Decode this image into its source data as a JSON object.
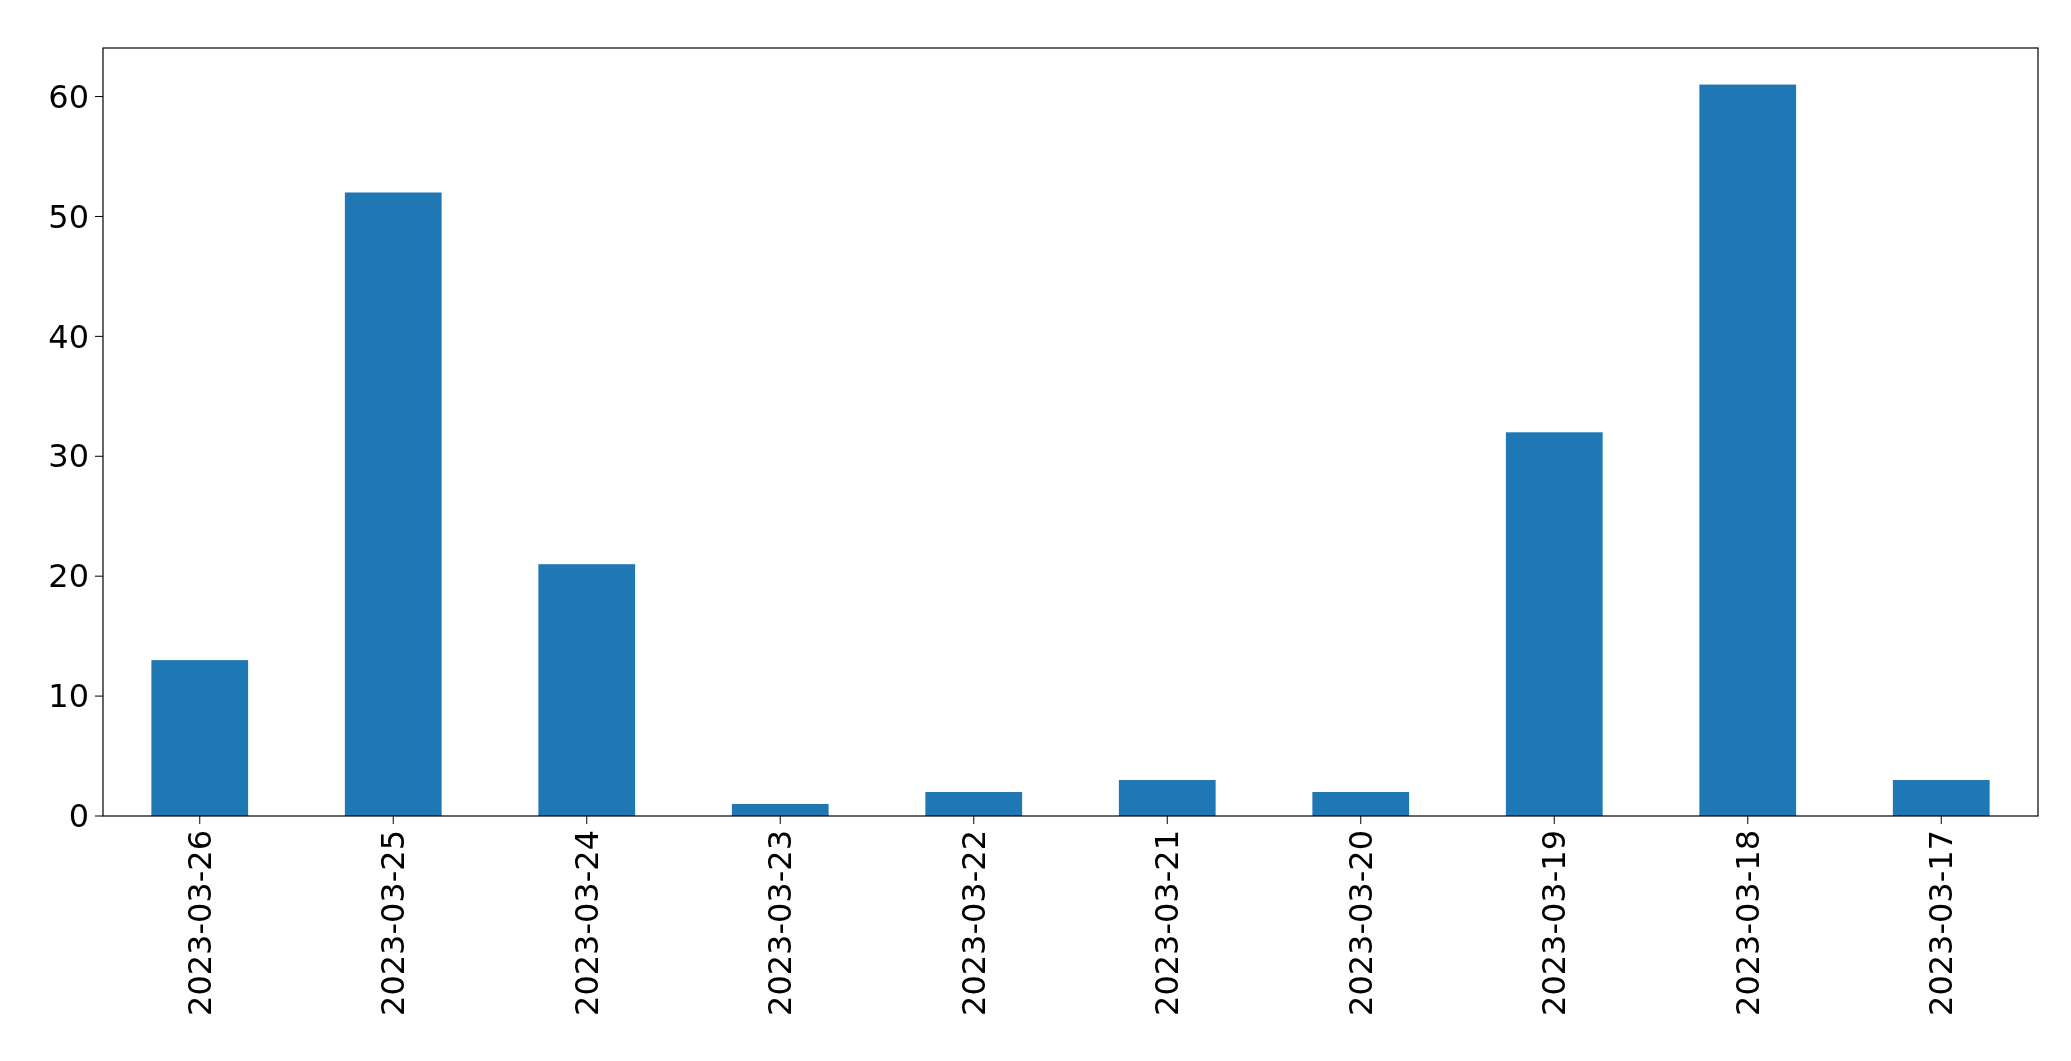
{
  "chart_data": {
    "type": "bar",
    "categories": [
      "2023-03-26",
      "2023-03-25",
      "2023-03-24",
      "2023-03-23",
      "2023-03-22",
      "2023-03-21",
      "2023-03-20",
      "2023-03-19",
      "2023-03-18",
      "2023-03-17"
    ],
    "values": [
      13,
      52,
      21,
      1,
      2,
      3,
      2,
      32,
      61,
      3
    ],
    "color": "#1f77b4",
    "ylim": [
      0,
      64.05
    ],
    "yticks": [
      0,
      10,
      20,
      30,
      40,
      50,
      60
    ],
    "grid": false
  }
}
